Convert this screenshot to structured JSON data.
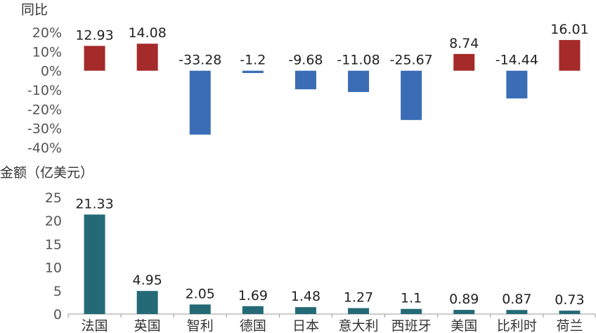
{
  "chart_data": [
    {
      "type": "bar",
      "ylabel": "同比",
      "categories": [
        "法国",
        "英国",
        "智利",
        "德国",
        "日本",
        "意大利",
        "西班牙",
        "美国",
        "比利时",
        "荷兰"
      ],
      "values": [
        12.93,
        14.08,
        -33.28,
        -1.2,
        -9.68,
        -11.08,
        -25.67,
        8.74,
        -14.44,
        16.01
      ],
      "data_labels": [
        "12.93",
        "14.08",
        "-33.28",
        "-1.2",
        "-9.68",
        "-11.08",
        "-25.67",
        "8.74",
        "-14.44",
        "16.01"
      ],
      "ylim": [
        -40,
        20
      ],
      "yticks": [
        20,
        10,
        0,
        -10,
        -20,
        -30,
        -40
      ],
      "ytick_labels": [
        "20%",
        "10%",
        "0%",
        "-10%",
        "-20%",
        "-30%",
        "-40%"
      ],
      "colors": {
        "positive": "#a52a2a",
        "negative": "#3a6db5"
      },
      "grid": false
    },
    {
      "type": "bar",
      "ylabel": "金额（亿美元）",
      "categories": [
        "法国",
        "英国",
        "智利",
        "德国",
        "日本",
        "意大利",
        "西班牙",
        "美国",
        "比利时",
        "荷兰"
      ],
      "values": [
        21.33,
        4.95,
        2.05,
        1.69,
        1.48,
        1.27,
        1.1,
        0.89,
        0.87,
        0.73
      ],
      "data_labels": [
        "21.33",
        "4.95",
        "2.05",
        "1.69",
        "1.48",
        "1.27",
        "1.1",
        "0.89",
        "0.87",
        "0.73"
      ],
      "ylim": [
        0,
        25
      ],
      "yticks": [
        25,
        20,
        15,
        10,
        5,
        0
      ],
      "ytick_labels": [
        "25",
        "20",
        "15",
        "10",
        "5",
        "0"
      ],
      "colors": {
        "bar": "#246a76"
      },
      "grid": false
    }
  ]
}
